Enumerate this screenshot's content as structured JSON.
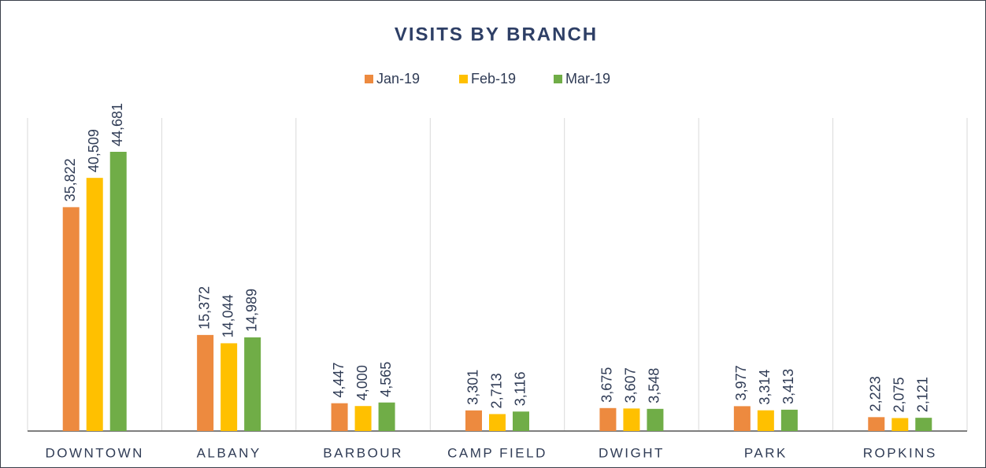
{
  "chart_data": {
    "type": "bar",
    "title": "VISITS BY BRANCH",
    "categories": [
      "DOWNTOWN",
      "ALBANY",
      "BARBOUR",
      "CAMP FIELD",
      "DWIGHT",
      "PARK",
      "ROPKINS"
    ],
    "series": [
      {
        "name": "Jan-19",
        "color": "#ed8a3f",
        "values": [
          35822,
          15372,
          4447,
          3301,
          3675,
          3977,
          2223
        ],
        "value_labels": [
          "35,822",
          "15,372",
          "4,447",
          "3,301",
          "3,675",
          "3,977",
          "2,223"
        ]
      },
      {
        "name": "Feb-19",
        "color": "#ffc000",
        "values": [
          40509,
          14044,
          4000,
          2713,
          3607,
          3314,
          2075
        ],
        "value_labels": [
          "40,509",
          "14,044",
          "4,000",
          "2,713",
          "3,607",
          "3,314",
          "2,075"
        ]
      },
      {
        "name": "Mar-19",
        "color": "#70ad47",
        "values": [
          44681,
          14989,
          4565,
          3116,
          3548,
          3413,
          2121
        ],
        "value_labels": [
          "44,681",
          "14,989",
          "4,565",
          "3,116",
          "3,548",
          "3,413",
          "2,121"
        ]
      }
    ],
    "legend": "top"
  }
}
